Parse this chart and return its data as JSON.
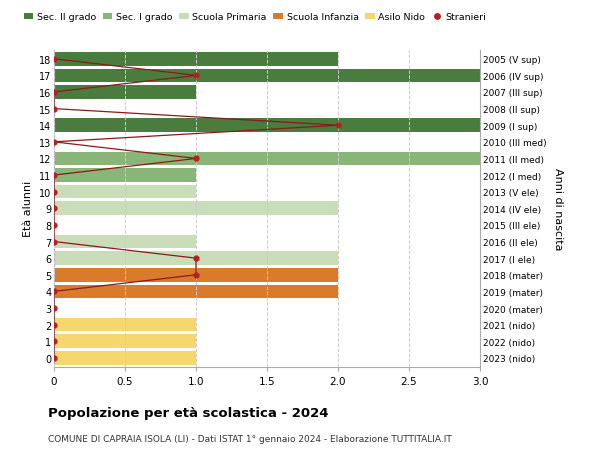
{
  "ages": [
    18,
    17,
    16,
    15,
    14,
    13,
    12,
    11,
    10,
    9,
    8,
    7,
    6,
    5,
    4,
    3,
    2,
    1,
    0
  ],
  "right_labels": [
    "2005 (V sup)",
    "2006 (IV sup)",
    "2007 (III sup)",
    "2008 (II sup)",
    "2009 (I sup)",
    "2010 (III med)",
    "2011 (II med)",
    "2012 (I med)",
    "2013 (V ele)",
    "2014 (IV ele)",
    "2015 (III ele)",
    "2016 (II ele)",
    "2017 (I ele)",
    "2018 (mater)",
    "2019 (mater)",
    "2020 (mater)",
    "2021 (nido)",
    "2022 (nido)",
    "2023 (nido)"
  ],
  "bar_values": [
    2,
    3,
    1,
    0,
    3,
    0,
    3,
    1,
    1,
    2,
    0,
    1,
    2,
    2,
    2,
    0,
    1,
    1,
    1
  ],
  "bar_colors": [
    "#4a7c3f",
    "#4a7c3f",
    "#4a7c3f",
    "#4a7c3f",
    "#4a7c3f",
    "#8ab57a",
    "#8ab57a",
    "#8ab57a",
    "#c8ddb8",
    "#c8ddb8",
    "#c8ddb8",
    "#c8ddb8",
    "#c8ddb8",
    "#d97b2b",
    "#d97b2b",
    "#d97b2b",
    "#f5d76e",
    "#f5d76e",
    "#f5d76e"
  ],
  "stranieri_values": [
    0,
    1,
    0,
    0,
    2,
    0,
    1,
    0,
    0,
    0,
    0,
    0,
    1,
    1,
    0,
    0,
    0,
    0,
    0
  ],
  "legend_labels": [
    "Sec. II grado",
    "Sec. I grado",
    "Scuola Primaria",
    "Scuola Infanzia",
    "Asilo Nido",
    "Stranieri"
  ],
  "legend_colors": [
    "#4a7c3f",
    "#8ab57a",
    "#c8ddb8",
    "#d97b2b",
    "#f5d76e",
    "#b22222"
  ],
  "title": "Popolazione per età scolastica - 2024",
  "subtitle": "COMUNE DI CAPRAIA ISOLA (LI) - Dati ISTAT 1° gennaio 2024 - Elaborazione TUTTITALIA.IT",
  "ylabel": "Età alunni",
  "ylabel_right": "Anni di nascita",
  "xlim": [
    0,
    3.0
  ],
  "bg_color": "#ffffff",
  "grid_color": "#cccccc",
  "bar_height": 0.82
}
